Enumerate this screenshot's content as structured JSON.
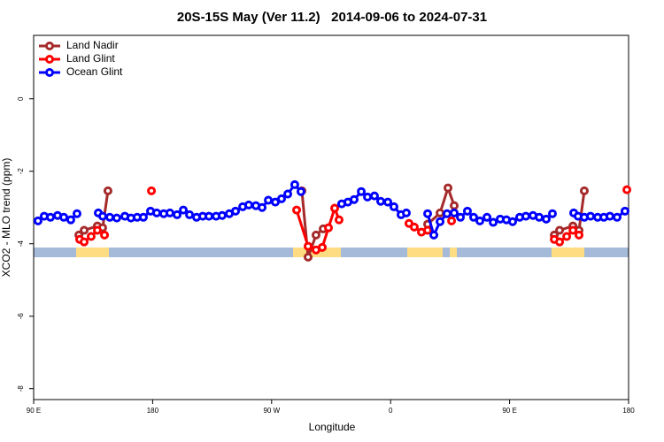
{
  "chart_data": {
    "type": "line",
    "title": "20S-15S May (Ver 11.2)   2014-09-06 to 2024-07-31",
    "x_label": "Longitude",
    "y_label": "XCO2 - MLO trend (ppm)",
    "xlim": [
      90,
      540
    ],
    "xticks": [
      {
        "value": 90,
        "label": "90 E"
      },
      180,
      {
        "value": 270,
        "label": "90 W"
      },
      {
        "value": 360,
        "label": "0"
      },
      {
        "value": 450,
        "label": "90 E"
      },
      {
        "value": 540,
        "label": "180"
      }
    ],
    "ylim": [
      -8.3,
      1.75
    ],
    "yticks": [
      0,
      -2,
      -4,
      -6,
      -8
    ],
    "legend": "top-left",
    "series": [
      {
        "name": "Land Nadir",
        "color": "#a52a2a",
        "x": [
          124.2,
          128.2,
          138.2,
          142.2,
          146.2,
          null,
          292.9,
          297.6,
          303.6,
          309.0,
          null,
          388.0,
          397.4,
          403.4,
          408.1,
          null,
          483.8,
          487.8,
          497.9,
          502.5,
          506.5
        ],
        "values": [
          -3.76,
          -3.63,
          -3.51,
          -3.56,
          -2.54,
          null,
          -2.54,
          -4.37,
          -3.76,
          -3.59,
          null,
          -3.46,
          -3.15,
          -2.46,
          -2.95,
          null,
          -3.76,
          -3.63,
          -3.51,
          -3.63,
          -2.54
        ]
      },
      {
        "name": "Land Glint",
        "color": "#ff0000",
        "x": [
          124.8,
          128.2,
          133.5,
          138.2,
          143.6,
          null,
          179.1,
          null,
          288.9,
          297.6,
          303.6,
          308.3,
          313.0,
          317.7,
          321.0,
          null,
          373.9,
          377.9,
          383.3,
          388.0,
          null,
          406.1,
          null,
          483.8,
          487.8,
          493.2,
          497.9,
          502.5,
          null,
          538.7
        ],
        "values": [
          -3.88,
          -3.95,
          -3.8,
          -3.63,
          -3.76,
          null,
          -2.54,
          null,
          -3.07,
          -4.07,
          -4.17,
          -4.1,
          -3.56,
          -3.02,
          -3.34,
          null,
          -3.44,
          -3.54,
          -3.68,
          -3.63,
          null,
          -3.37,
          null,
          -3.88,
          -3.95,
          -3.8,
          -3.63,
          -3.76,
          null,
          -2.51
        ]
      },
      {
        "name": "Ocean Glint",
        "color": "#0000ff",
        "x": [
          93.3,
          98.0,
          102.7,
          108.1,
          112.8,
          118.1,
          122.8,
          null,
          138.9,
          142.2,
          147.6,
          152.9,
          159.0,
          163.6,
          168.3,
          173.0,
          178.4,
          183.1,
          188.4,
          193.1,
          198.5,
          203.2,
          207.9,
          213.2,
          217.9,
          222.6,
          228.0,
          232.6,
          238.0,
          242.7,
          248.1,
          252.7,
          258.1,
          262.8,
          267.5,
          272.8,
          277.5,
          282.2,
          287.5,
          292.2,
          null,
          323.0,
          327.7,
          332.4,
          337.8,
          342.5,
          347.8,
          352.5,
          357.9,
          362.5,
          367.9,
          371.9,
          null,
          388.0,
          392.7,
          397.4,
          402.7,
          408.1,
          412.8,
          418.1,
          422.8,
          427.5,
          432.9,
          437.6,
          442.9,
          447.6,
          452.3,
          457.6,
          462.3,
          467.7,
          472.4,
          477.7,
          482.4,
          null,
          498.5,
          501.8,
          506.5,
          511.2,
          516.6,
          521.3,
          525.9,
          531.3,
          537.3
        ],
        "values": [
          -3.37,
          -3.24,
          -3.27,
          -3.22,
          -3.27,
          -3.34,
          -3.17,
          null,
          -3.15,
          -3.24,
          -3.27,
          -3.29,
          -3.24,
          -3.29,
          -3.27,
          -3.27,
          -3.1,
          -3.15,
          -3.17,
          -3.15,
          -3.2,
          -3.07,
          -3.2,
          -3.27,
          -3.24,
          -3.24,
          -3.24,
          -3.22,
          -3.17,
          -3.1,
          -2.98,
          -2.93,
          -2.95,
          -3.0,
          -2.8,
          -2.85,
          -2.76,
          -2.63,
          -2.37,
          -2.56,
          null,
          -2.9,
          -2.85,
          -2.78,
          -2.56,
          -2.71,
          -2.68,
          -2.83,
          -2.85,
          -2.98,
          -3.2,
          -3.15,
          null,
          -3.17,
          -3.76,
          -3.39,
          -3.17,
          -3.15,
          -3.27,
          -3.1,
          -3.27,
          -3.37,
          -3.27,
          -3.41,
          -3.32,
          -3.34,
          -3.39,
          -3.27,
          -3.24,
          -3.22,
          -3.27,
          -3.32,
          -3.17,
          null,
          -3.15,
          -3.24,
          -3.27,
          -3.24,
          -3.27,
          -3.27,
          -3.24,
          -3.27,
          -3.1
        ]
      }
    ]
  }
}
